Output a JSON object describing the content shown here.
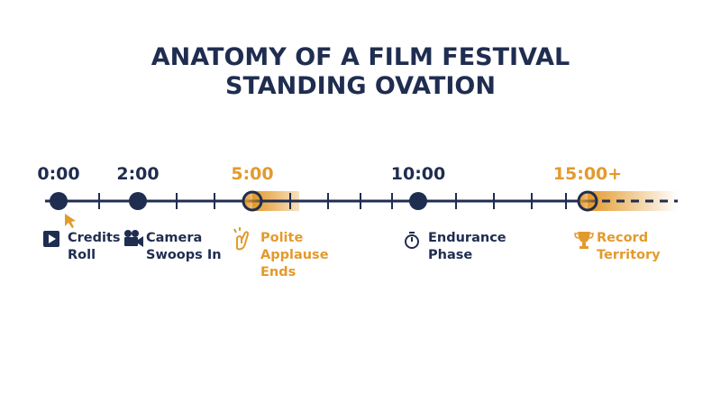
{
  "title": [
    "ANATOMY OF A FILM FESTIVAL",
    "STANDING OVATION"
  ],
  "milestones": [
    {
      "time": "0:00",
      "label": [
        "Credits",
        "Roll"
      ],
      "color": "#1f2d50"
    },
    {
      "time": "2:00",
      "label": [
        "Camera",
        "Swoops In"
      ],
      "color": "#1f2d50"
    },
    {
      "time": "5:00",
      "label": [
        "Polite",
        "Applause",
        "Ends"
      ],
      "color": "#e39a2d"
    },
    {
      "time": "10:00",
      "label": [
        "Endurance",
        "Phase"
      ],
      "color": "#1f2d50"
    },
    {
      "time": "15:00+",
      "label": [
        "Record",
        "Territory"
      ],
      "color": "#e39a2d"
    }
  ]
}
